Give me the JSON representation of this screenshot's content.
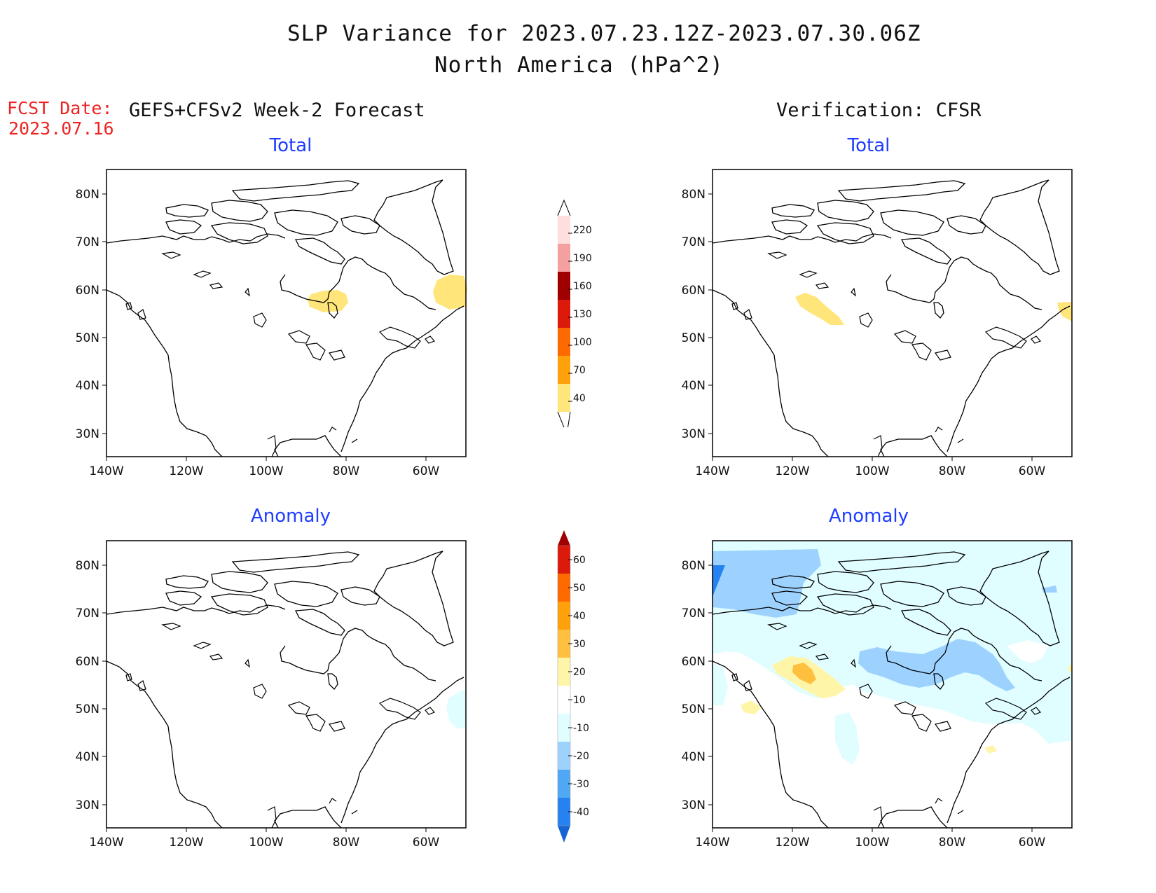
{
  "header": {
    "title": "SLP Variance for 2023.07.23.12Z-2023.07.30.06Z",
    "subtitle": "North America (hPa^2)",
    "fcst_label": "FCST Date:",
    "fcst_date": "2023.07.16",
    "left_heading": "GEFS+CFSv2 Week-2 Forecast",
    "right_heading": "Verification: CFSR"
  },
  "panels": {
    "fc_total": {
      "title": "Total"
    },
    "fc_anomaly": {
      "title": "Anomaly"
    },
    "ver_total": {
      "title": "Total"
    },
    "ver_anomaly": {
      "title": "Anomaly"
    }
  },
  "axes": {
    "lat_labels": [
      "80N",
      "70N",
      "60N",
      "50N",
      "40N",
      "30N"
    ],
    "lon_labels": [
      "140W",
      "120W",
      "100W",
      "80W",
      "60W"
    ]
  },
  "colorbars": {
    "total": {
      "labels": [
        "220",
        "190",
        "160",
        "130",
        "100",
        "70",
        "40"
      ],
      "colors": [
        "#ffdede",
        "#f4a0a0",
        "#a00000",
        "#dc1a0c",
        "#ff6a00",
        "#ffa10a",
        "#ffe57a"
      ]
    },
    "anomaly": {
      "labels": [
        "60",
        "50",
        "40",
        "30",
        "20",
        "10",
        "-10",
        "-20",
        "-30",
        "-40"
      ],
      "colors": [
        "#a00000",
        "#dc1a0c",
        "#ff6a00",
        "#ffa10a",
        "#ffc040",
        "#fff5a8",
        "#ffffff",
        "#e0fdff",
        "#9dd2ff",
        "#50a8f5",
        "#2682f0",
        "#1464d2"
      ]
    }
  },
  "map_features": {
    "coastlines": "black",
    "shading": [
      {
        "panel": "fc_total",
        "region": "Hudson Bay south",
        "class": "40-70",
        "color": "#ffe57a"
      },
      {
        "panel": "fc_total",
        "region": "Labrador",
        "class": "40-70",
        "color": "#ffe57a"
      },
      {
        "panel": "ver_total",
        "region": "Alberta",
        "class": "40-70",
        "color": "#ffe57a"
      },
      {
        "panel": "ver_total",
        "region": "Labrador east edge",
        "class": "40-70",
        "color": "#ffe57a"
      },
      {
        "panel": "fc_anomaly",
        "region": "Nova Scotia",
        "class": "-10 to -20",
        "color": "#e0fdff"
      },
      {
        "panel": "ver_anomaly",
        "region": "Arctic / Canada",
        "class": "-10 to -20",
        "color": "#e0fdff"
      },
      {
        "panel": "ver_anomaly",
        "region": "Arctic northwest",
        "class": "-20 to -30",
        "color": "#9dd2ff"
      },
      {
        "panel": "ver_anomaly",
        "region": "Hudson Bay",
        "class": "-20 to -30",
        "color": "#9dd2ff"
      },
      {
        "panel": "ver_anomaly",
        "region": "Alberta",
        "class": "10 to 20",
        "color": "#fff5a8"
      },
      {
        "panel": "ver_anomaly",
        "region": "Alberta core",
        "class": "20 to 30",
        "color": "#ffc040"
      }
    ]
  }
}
